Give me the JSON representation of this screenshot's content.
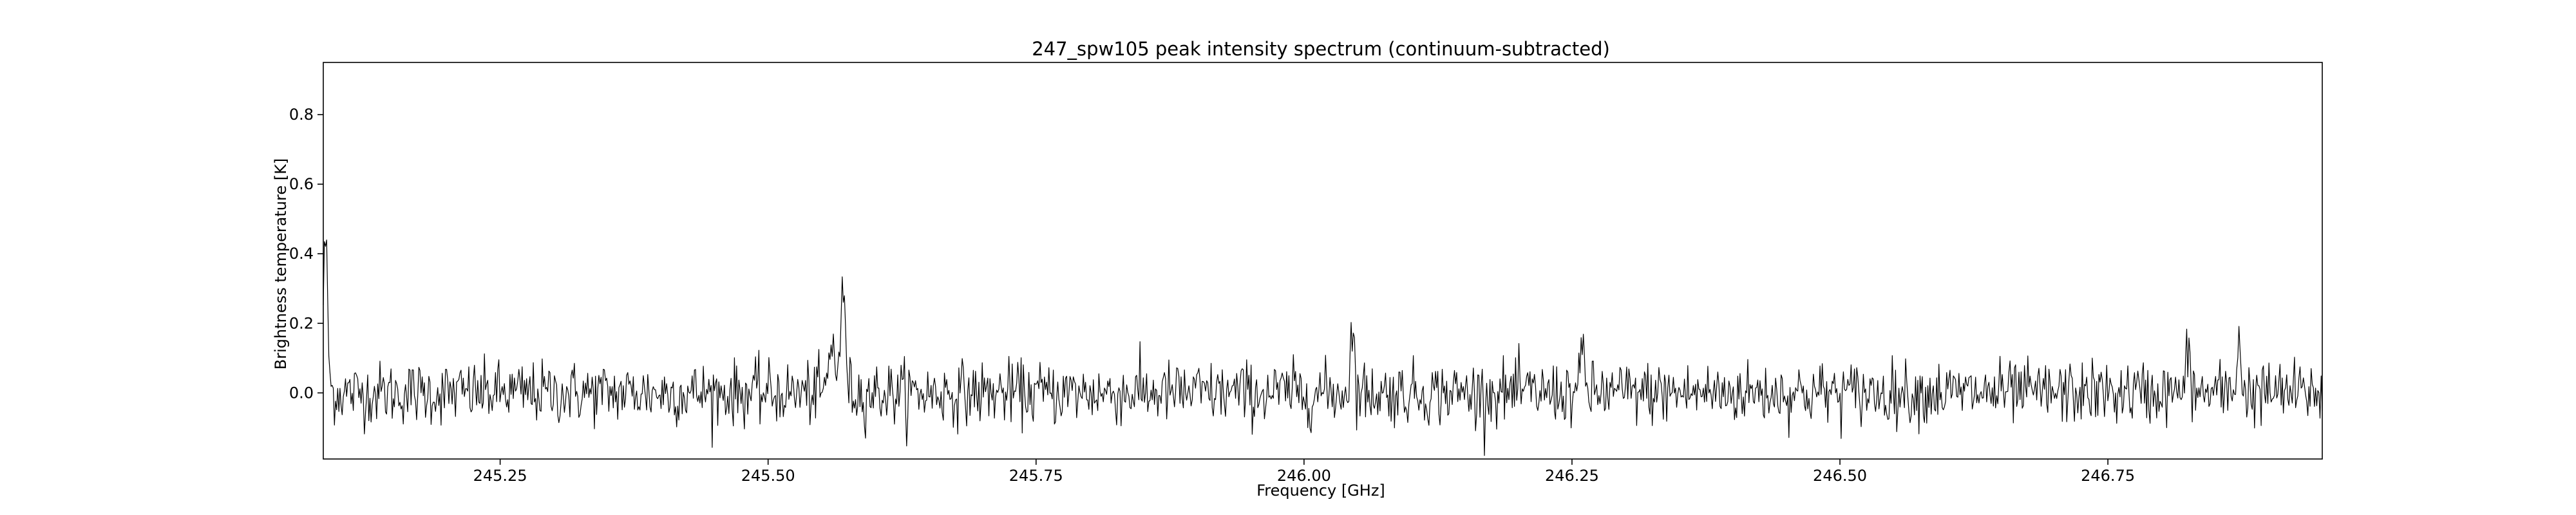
{
  "chart_data": {
    "type": "line",
    "title": "247_spw105 peak intensity spectrum (continuum-subtracted)",
    "xlabel": "Frequency [GHz]",
    "ylabel": "Brightness temperature [K]",
    "xlim": [
      245.085,
      246.95
    ],
    "ylim": [
      -0.19,
      0.95
    ],
    "xticks": [
      245.25,
      245.5,
      245.75,
      246.0,
      246.25,
      246.5,
      246.75
    ],
    "xtick_labels": [
      "245.25",
      "245.50",
      "245.75",
      "246.00",
      "246.25",
      "246.50",
      "246.75"
    ],
    "yticks": [
      0.0,
      0.2,
      0.4,
      0.6,
      0.8
    ],
    "ytick_labels": [
      "0.0",
      "0.2",
      "0.4",
      "0.6",
      "0.8"
    ],
    "grid": false,
    "legend": "none",
    "line_color": "#000000",
    "series": [
      {
        "x_start": 245.085,
        "x_end": 246.95,
        "n_points": 1800,
        "noise_rms": 0.045,
        "features": [
          {
            "x": 245.087,
            "peak": 0.44,
            "width": 0.002
          },
          {
            "x": 245.57,
            "peak": 0.27,
            "width": 0.0025
          },
          {
            "x": 245.56,
            "peak": 0.14,
            "width": 0.003
          },
          {
            "x": 246.045,
            "peak": 0.18,
            "width": 0.002
          },
          {
            "x": 246.26,
            "peak": 0.15,
            "width": 0.0015
          },
          {
            "x": 246.872,
            "peak": 0.19,
            "width": 0.0015
          },
          {
            "x": 246.825,
            "peak": 0.15,
            "width": 0.0015
          }
        ]
      }
    ]
  }
}
